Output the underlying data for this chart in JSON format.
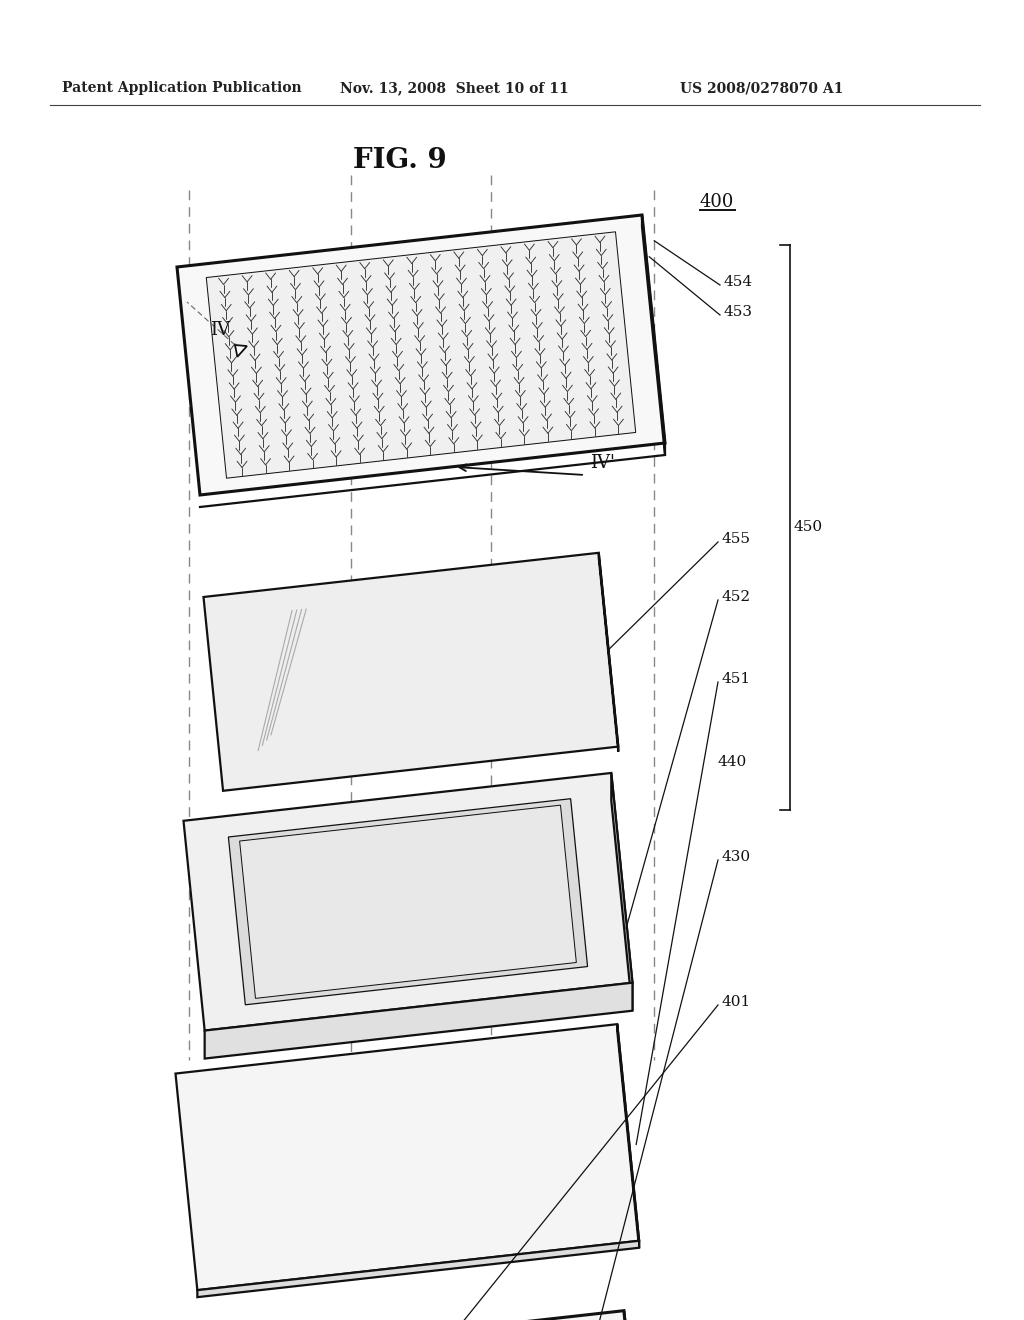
{
  "title": "FIG. 9",
  "header_left": "Patent Application Publication",
  "header_mid": "Nov. 13, 2008  Sheet 10 of 11",
  "header_right": "US 2008/0278070 A1",
  "bg_color": "#ffffff",
  "ec": "#111111",
  "fc_white": "#ffffff",
  "fc_light": "#f2f2f2",
  "fc_mid": "#e0e0e0",
  "fc_dark": "#c8c8c8",
  "fc_darker": "#b8b8b8",
  "lw_main": 1.6,
  "lw_thick": 2.2,
  "lw_thin": 0.9,
  "label_fontsize": 11,
  "title_fontsize": 20,
  "header_fontsize": 10
}
